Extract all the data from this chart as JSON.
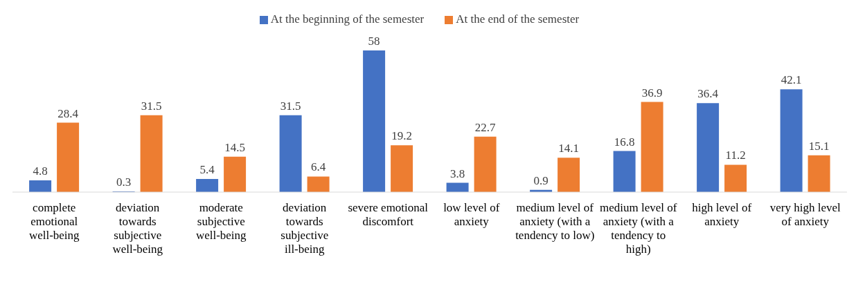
{
  "chart_data": {
    "type": "bar",
    "categories": [
      "complete emotional well-being",
      "deviation towards subjective well-being",
      "moderate subjective well-being",
      "deviation towards subjective ill-being",
      "severe emotional discomfort",
      "low level of anxiety",
      "medium level of anxiety (with a tendency to low)",
      "medium level of anxiety (with a tendency to high)",
      "high level of anxiety",
      "very high level of anxiety"
    ],
    "series": [
      {
        "name": "At the beginning of the semester",
        "color": "#4472c4",
        "values": [
          4.8,
          0.3,
          5.4,
          31.5,
          58,
          3.8,
          0.9,
          16.8,
          36.4,
          42.1
        ]
      },
      {
        "name": "At the end of the semester",
        "color": "#ed7d31",
        "values": [
          28.4,
          31.5,
          14.5,
          6.4,
          19.2,
          22.7,
          14.1,
          36.9,
          11.2,
          15.1
        ]
      }
    ],
    "data_labels": true,
    "legend": "top",
    "grid": false
  }
}
